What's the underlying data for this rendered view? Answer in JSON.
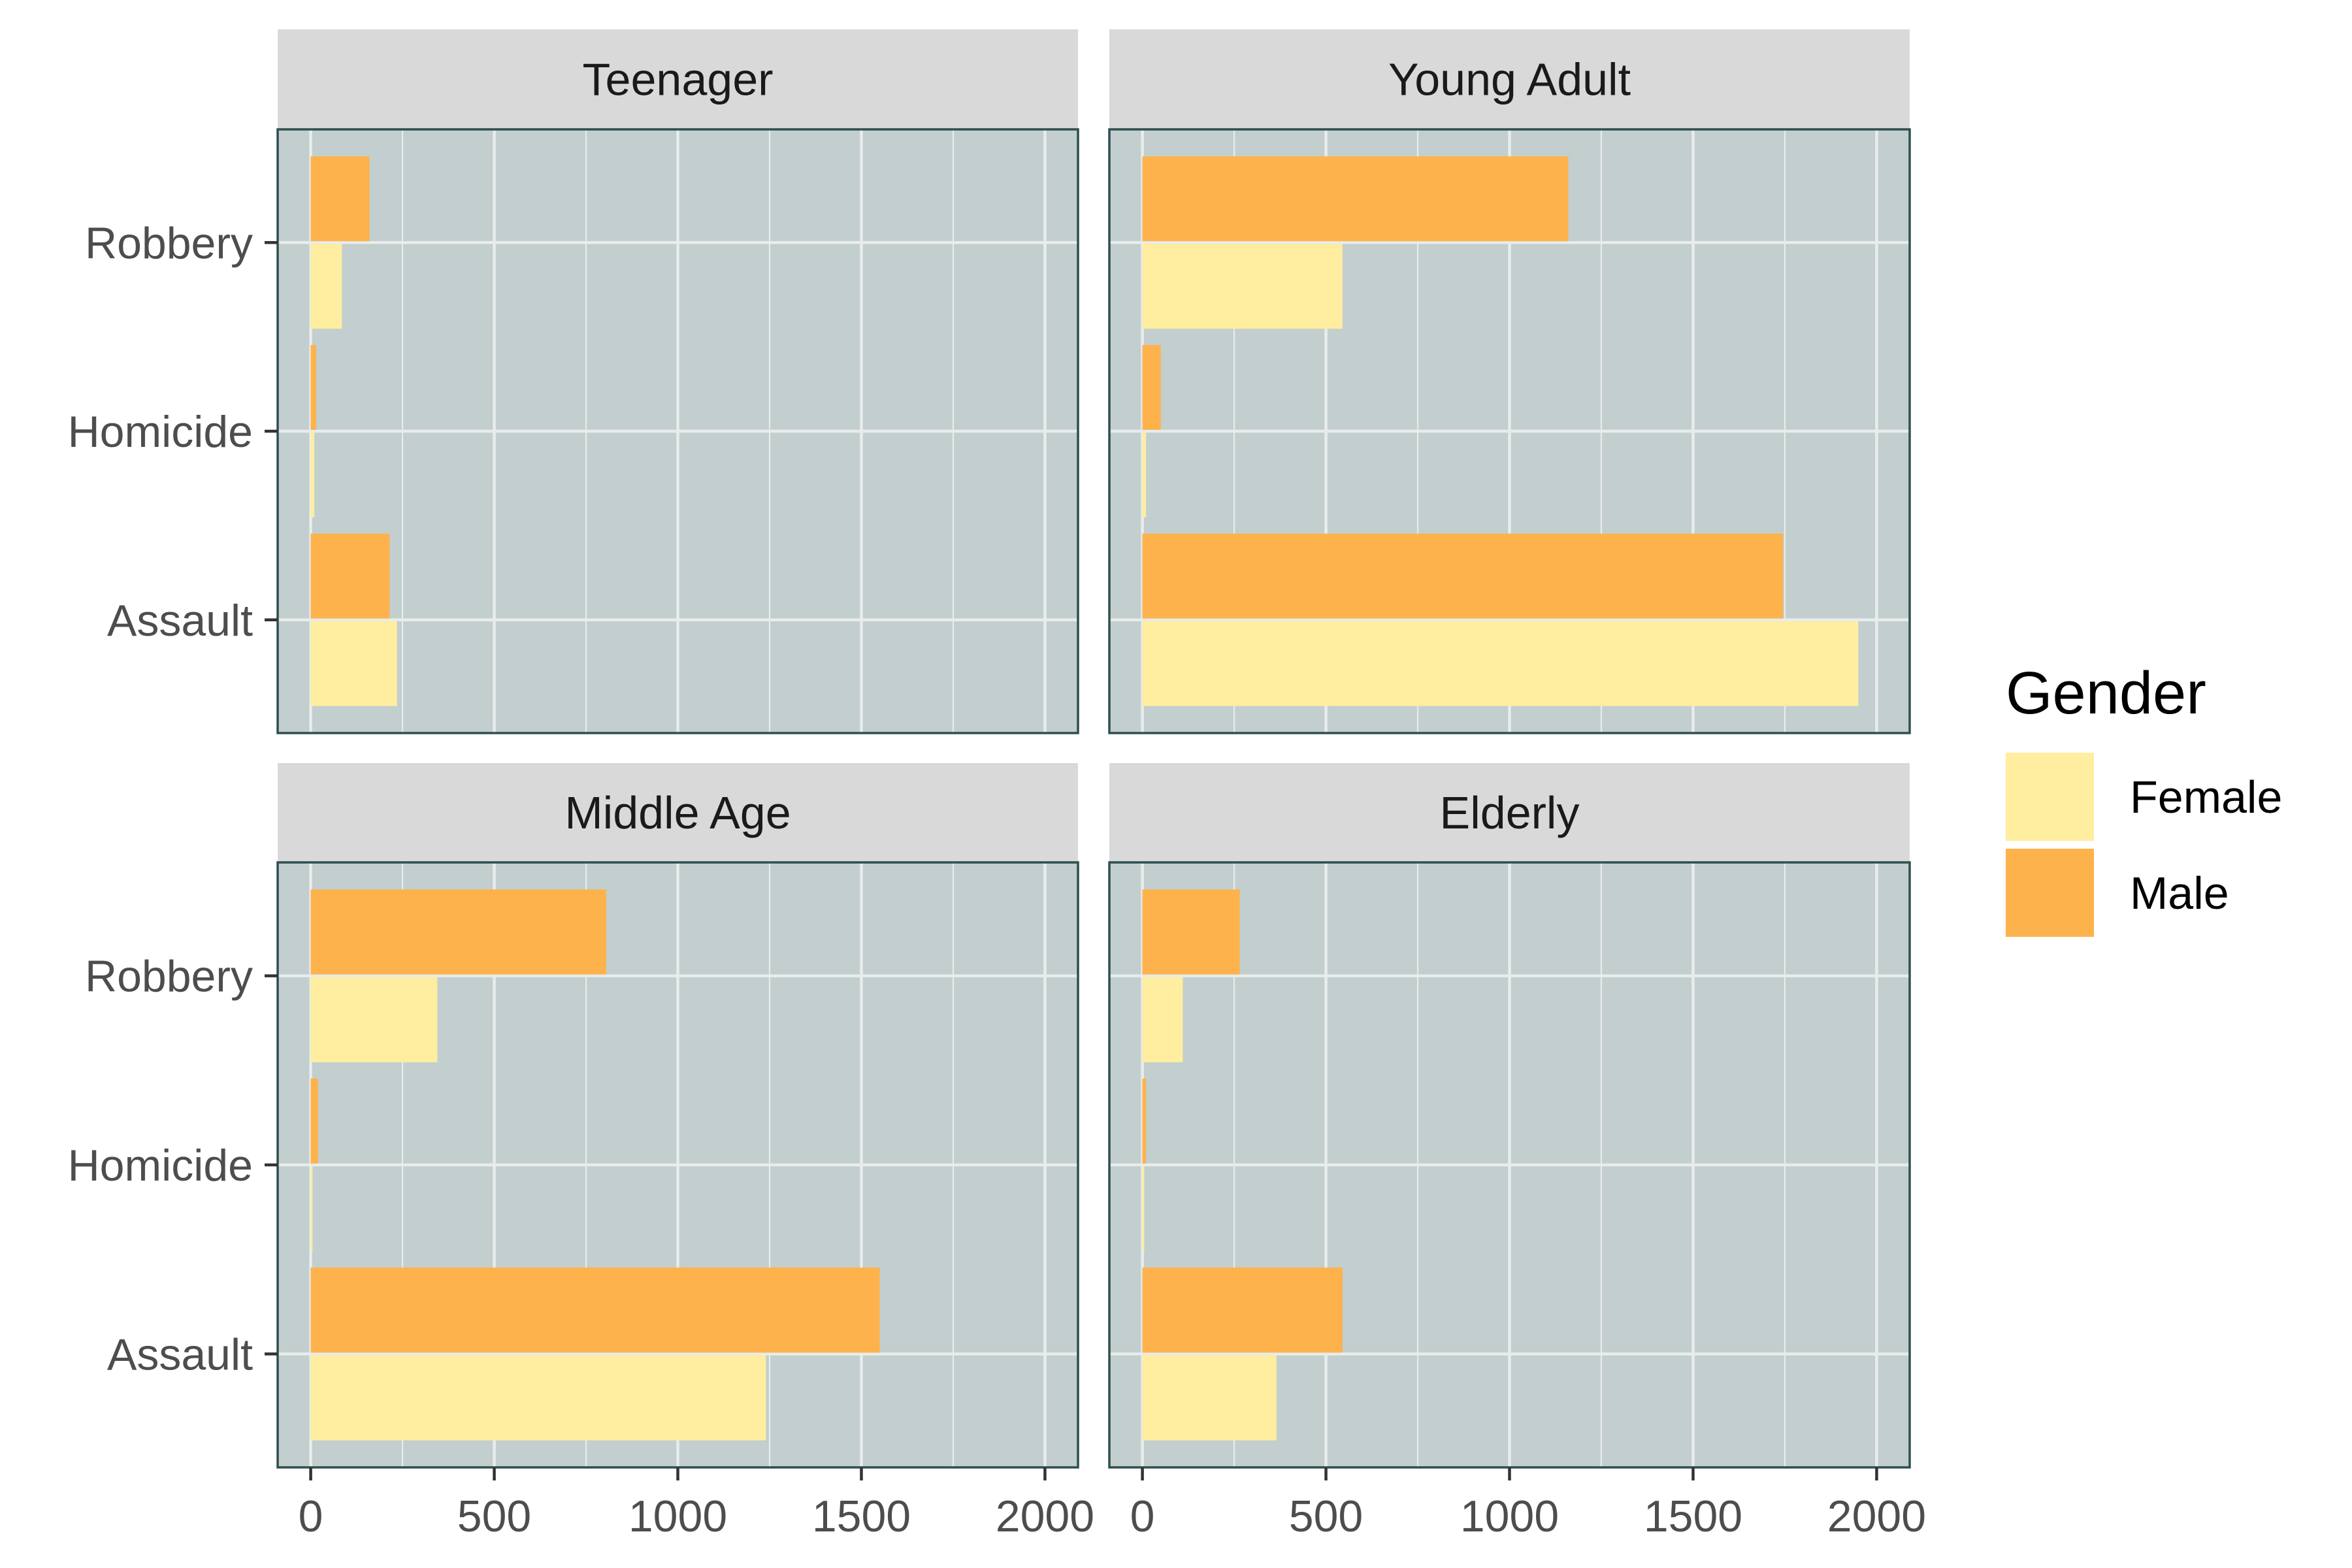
{
  "chart_data": {
    "type": "bar",
    "orientation": "horizontal",
    "categories": [
      "Assault",
      "Homicide",
      "Robbery"
    ],
    "xlim": [
      0,
      2000
    ],
    "x_ticks": [
      0,
      500,
      1000,
      1500,
      2000
    ],
    "grid": true,
    "legend": {
      "title": "Gender",
      "placement": "right",
      "entries": [
        {
          "name": "Female",
          "color": "#ffeda0"
        },
        {
          "name": "Male",
          "color": "#feb24c"
        }
      ]
    },
    "colors": {
      "panel_background": "#c3cece",
      "panel_border": "#2f4f4f",
      "strip_background": "#d9d9d9",
      "grid": "#e8ecec"
    },
    "panels": [
      {
        "title": "Teenager",
        "series": [
          {
            "name": "Female",
            "values": [
              235,
              10,
              85
            ]
          },
          {
            "name": "Male",
            "values": [
              215,
              15,
              160
            ]
          }
        ]
      },
      {
        "title": "Young Adult",
        "series": [
          {
            "name": "Female",
            "values": [
              1950,
              10,
              545
            ]
          },
          {
            "name": "Male",
            "values": [
              1745,
              50,
              1160
            ]
          }
        ]
      },
      {
        "title": "Middle Age",
        "series": [
          {
            "name": "Female",
            "values": [
              1240,
              5,
              345
            ]
          },
          {
            "name": "Male",
            "values": [
              1550,
              20,
              805
            ]
          }
        ]
      },
      {
        "title": "Elderly",
        "series": [
          {
            "name": "Female",
            "values": [
              365,
              5,
              110
            ]
          },
          {
            "name": "Male",
            "values": [
              545,
              10,
              265
            ]
          }
        ]
      }
    ]
  }
}
